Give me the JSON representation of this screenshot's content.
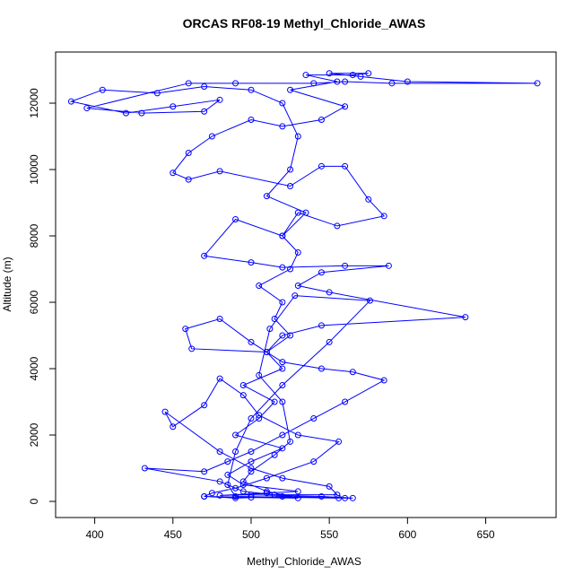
{
  "chart_data": {
    "type": "line",
    "title": "ORCAS RF08-19 Methyl_Chloride_AWAS",
    "x_label": "Methyl_Chloride_AWAS",
    "y_label": "Altitude (m)",
    "color": "#0000ff",
    "markers": true,
    "xlim": [
      375,
      695
    ],
    "ylim": [
      -486,
      13541
    ],
    "xticks": [
      400,
      450,
      500,
      550,
      600,
      650
    ],
    "yticks": [
      0,
      2000,
      4000,
      6000,
      8000,
      10000,
      12000
    ],
    "x": [
      470,
      490,
      520,
      560,
      565,
      545,
      500,
      480,
      510,
      530,
      495,
      485,
      500,
      520,
      490,
      505,
      515,
      495,
      520,
      510,
      525,
      515,
      520,
      505,
      525,
      530,
      520,
      535,
      510,
      525,
      530,
      520,
      500,
      470,
      440,
      405,
      385,
      420,
      450,
      480,
      470,
      430,
      395,
      460,
      490,
      540,
      560,
      590,
      683,
      600,
      570,
      550,
      575,
      565,
      535,
      555,
      525,
      560,
      545,
      520,
      500,
      475,
      460,
      450,
      460,
      480,
      525,
      545,
      560,
      575,
      585,
      555,
      530,
      520,
      490,
      470,
      500,
      520,
      560,
      588,
      545,
      530,
      550,
      637,
      545,
      520,
      510,
      462,
      458,
      480,
      500,
      520,
      545,
      565,
      585,
      560,
      540,
      520,
      500,
      485,
      470,
      432,
      480,
      495,
      515,
      555,
      550,
      520,
      500,
      480,
      445,
      450,
      470,
      480,
      495,
      505,
      530,
      556,
      540,
      510,
      490,
      475,
      470,
      500,
      530,
      510,
      495,
      500,
      515,
      525,
      520,
      505,
      512,
      528,
      576,
      550,
      520,
      500,
      490,
      485,
      490,
      556
    ],
    "values": [
      150,
      100,
      150,
      100,
      100,
      150,
      200,
      180,
      250,
      300,
      500,
      800,
      1200,
      1600,
      2000,
      2500,
      3000,
      3500,
      4000,
      4500,
      5000,
      5500,
      6000,
      6500,
      7000,
      7500,
      8000,
      8700,
      9200,
      10000,
      11000,
      12000,
      12400,
      12500,
      12300,
      12400,
      12050,
      11700,
      11900,
      12100,
      11750,
      11700,
      11850,
      12600,
      12600,
      12600,
      12650,
      12600,
      12600,
      12650,
      12800,
      12900,
      12900,
      12850,
      12850,
      12650,
      12400,
      11900,
      11500,
      11300,
      11500,
      11000,
      10500,
      9900,
      9700,
      9950,
      9500,
      10100,
      10100,
      9100,
      8600,
      8300,
      8700,
      8000,
      8500,
      7400,
      7200,
      7050,
      7100,
      7100,
      6900,
      6500,
      6300,
      5550,
      5300,
      5000,
      4500,
      4600,
      5200,
      5500,
      4800,
      4200,
      4000,
      3900,
      3650,
      3000,
      2500,
      2000,
      1500,
      1200,
      900,
      1000,
      600,
      300,
      200,
      200,
      450,
      700,
      1000,
      1500,
      2700,
      2250,
      2900,
      3700,
      3200,
      2600,
      2000,
      1800,
      1200,
      700,
      400,
      250,
      150,
      120,
      100,
      300,
      600,
      900,
      1400,
      1800,
      3000,
      3800,
      5200,
      6200,
      6050,
      4800,
      3500,
      2500,
      1500,
      500,
      150,
      100
    ]
  }
}
